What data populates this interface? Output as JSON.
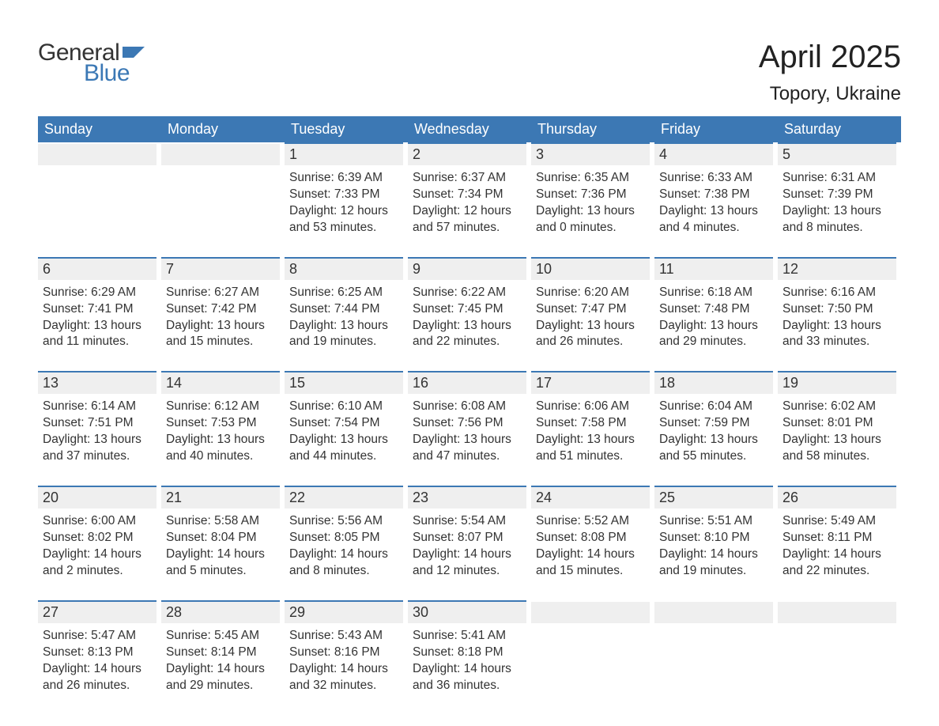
{
  "logo": {
    "text1": "General",
    "text2": "Blue",
    "flag_color": "#3c78b4",
    "text1_color": "#333333",
    "text2_color": "#3b78b5"
  },
  "title": "April 2025",
  "location": "Topory, Ukraine",
  "colors": {
    "header_bg": "#3c78b4",
    "header_text": "#ffffff",
    "daynum_bg": "#efefef",
    "border_top": "#3c78b4",
    "body_text": "#333333",
    "page_bg": "#ffffff"
  },
  "typography": {
    "title_fontsize": 40,
    "location_fontsize": 24,
    "dow_fontsize": 18,
    "daynum_fontsize": 18,
    "body_fontsize": 15.5
  },
  "days_of_week": [
    "Sunday",
    "Monday",
    "Tuesday",
    "Wednesday",
    "Thursday",
    "Friday",
    "Saturday"
  ],
  "weeks": [
    [
      {
        "empty": true
      },
      {
        "empty": true
      },
      {
        "n": "1",
        "sunrise": "Sunrise: 6:39 AM",
        "sunset": "Sunset: 7:33 PM",
        "dl1": "Daylight: 12 hours",
        "dl2": "and 53 minutes."
      },
      {
        "n": "2",
        "sunrise": "Sunrise: 6:37 AM",
        "sunset": "Sunset: 7:34 PM",
        "dl1": "Daylight: 12 hours",
        "dl2": "and 57 minutes."
      },
      {
        "n": "3",
        "sunrise": "Sunrise: 6:35 AM",
        "sunset": "Sunset: 7:36 PM",
        "dl1": "Daylight: 13 hours",
        "dl2": "and 0 minutes."
      },
      {
        "n": "4",
        "sunrise": "Sunrise: 6:33 AM",
        "sunset": "Sunset: 7:38 PM",
        "dl1": "Daylight: 13 hours",
        "dl2": "and 4 minutes."
      },
      {
        "n": "5",
        "sunrise": "Sunrise: 6:31 AM",
        "sunset": "Sunset: 7:39 PM",
        "dl1": "Daylight: 13 hours",
        "dl2": "and 8 minutes."
      }
    ],
    [
      {
        "n": "6",
        "sunrise": "Sunrise: 6:29 AM",
        "sunset": "Sunset: 7:41 PM",
        "dl1": "Daylight: 13 hours",
        "dl2": "and 11 minutes."
      },
      {
        "n": "7",
        "sunrise": "Sunrise: 6:27 AM",
        "sunset": "Sunset: 7:42 PM",
        "dl1": "Daylight: 13 hours",
        "dl2": "and 15 minutes."
      },
      {
        "n": "8",
        "sunrise": "Sunrise: 6:25 AM",
        "sunset": "Sunset: 7:44 PM",
        "dl1": "Daylight: 13 hours",
        "dl2": "and 19 minutes."
      },
      {
        "n": "9",
        "sunrise": "Sunrise: 6:22 AM",
        "sunset": "Sunset: 7:45 PM",
        "dl1": "Daylight: 13 hours",
        "dl2": "and 22 minutes."
      },
      {
        "n": "10",
        "sunrise": "Sunrise: 6:20 AM",
        "sunset": "Sunset: 7:47 PM",
        "dl1": "Daylight: 13 hours",
        "dl2": "and 26 minutes."
      },
      {
        "n": "11",
        "sunrise": "Sunrise: 6:18 AM",
        "sunset": "Sunset: 7:48 PM",
        "dl1": "Daylight: 13 hours",
        "dl2": "and 29 minutes."
      },
      {
        "n": "12",
        "sunrise": "Sunrise: 6:16 AM",
        "sunset": "Sunset: 7:50 PM",
        "dl1": "Daylight: 13 hours",
        "dl2": "and 33 minutes."
      }
    ],
    [
      {
        "n": "13",
        "sunrise": "Sunrise: 6:14 AM",
        "sunset": "Sunset: 7:51 PM",
        "dl1": "Daylight: 13 hours",
        "dl2": "and 37 minutes."
      },
      {
        "n": "14",
        "sunrise": "Sunrise: 6:12 AM",
        "sunset": "Sunset: 7:53 PM",
        "dl1": "Daylight: 13 hours",
        "dl2": "and 40 minutes."
      },
      {
        "n": "15",
        "sunrise": "Sunrise: 6:10 AM",
        "sunset": "Sunset: 7:54 PM",
        "dl1": "Daylight: 13 hours",
        "dl2": "and 44 minutes."
      },
      {
        "n": "16",
        "sunrise": "Sunrise: 6:08 AM",
        "sunset": "Sunset: 7:56 PM",
        "dl1": "Daylight: 13 hours",
        "dl2": "and 47 minutes."
      },
      {
        "n": "17",
        "sunrise": "Sunrise: 6:06 AM",
        "sunset": "Sunset: 7:58 PM",
        "dl1": "Daylight: 13 hours",
        "dl2": "and 51 minutes."
      },
      {
        "n": "18",
        "sunrise": "Sunrise: 6:04 AM",
        "sunset": "Sunset: 7:59 PM",
        "dl1": "Daylight: 13 hours",
        "dl2": "and 55 minutes."
      },
      {
        "n": "19",
        "sunrise": "Sunrise: 6:02 AM",
        "sunset": "Sunset: 8:01 PM",
        "dl1": "Daylight: 13 hours",
        "dl2": "and 58 minutes."
      }
    ],
    [
      {
        "n": "20",
        "sunrise": "Sunrise: 6:00 AM",
        "sunset": "Sunset: 8:02 PM",
        "dl1": "Daylight: 14 hours",
        "dl2": "and 2 minutes."
      },
      {
        "n": "21",
        "sunrise": "Sunrise: 5:58 AM",
        "sunset": "Sunset: 8:04 PM",
        "dl1": "Daylight: 14 hours",
        "dl2": "and 5 minutes."
      },
      {
        "n": "22",
        "sunrise": "Sunrise: 5:56 AM",
        "sunset": "Sunset: 8:05 PM",
        "dl1": "Daylight: 14 hours",
        "dl2": "and 8 minutes."
      },
      {
        "n": "23",
        "sunrise": "Sunrise: 5:54 AM",
        "sunset": "Sunset: 8:07 PM",
        "dl1": "Daylight: 14 hours",
        "dl2": "and 12 minutes."
      },
      {
        "n": "24",
        "sunrise": "Sunrise: 5:52 AM",
        "sunset": "Sunset: 8:08 PM",
        "dl1": "Daylight: 14 hours",
        "dl2": "and 15 minutes."
      },
      {
        "n": "25",
        "sunrise": "Sunrise: 5:51 AM",
        "sunset": "Sunset: 8:10 PM",
        "dl1": "Daylight: 14 hours",
        "dl2": "and 19 minutes."
      },
      {
        "n": "26",
        "sunrise": "Sunrise: 5:49 AM",
        "sunset": "Sunset: 8:11 PM",
        "dl1": "Daylight: 14 hours",
        "dl2": "and 22 minutes."
      }
    ],
    [
      {
        "n": "27",
        "sunrise": "Sunrise: 5:47 AM",
        "sunset": "Sunset: 8:13 PM",
        "dl1": "Daylight: 14 hours",
        "dl2": "and 26 minutes."
      },
      {
        "n": "28",
        "sunrise": "Sunrise: 5:45 AM",
        "sunset": "Sunset: 8:14 PM",
        "dl1": "Daylight: 14 hours",
        "dl2": "and 29 minutes."
      },
      {
        "n": "29",
        "sunrise": "Sunrise: 5:43 AM",
        "sunset": "Sunset: 8:16 PM",
        "dl1": "Daylight: 14 hours",
        "dl2": "and 32 minutes."
      },
      {
        "n": "30",
        "sunrise": "Sunrise: 5:41 AM",
        "sunset": "Sunset: 8:18 PM",
        "dl1": "Daylight: 14 hours",
        "dl2": "and 36 minutes."
      },
      {
        "empty": true
      },
      {
        "empty": true
      },
      {
        "empty": true
      }
    ]
  ]
}
